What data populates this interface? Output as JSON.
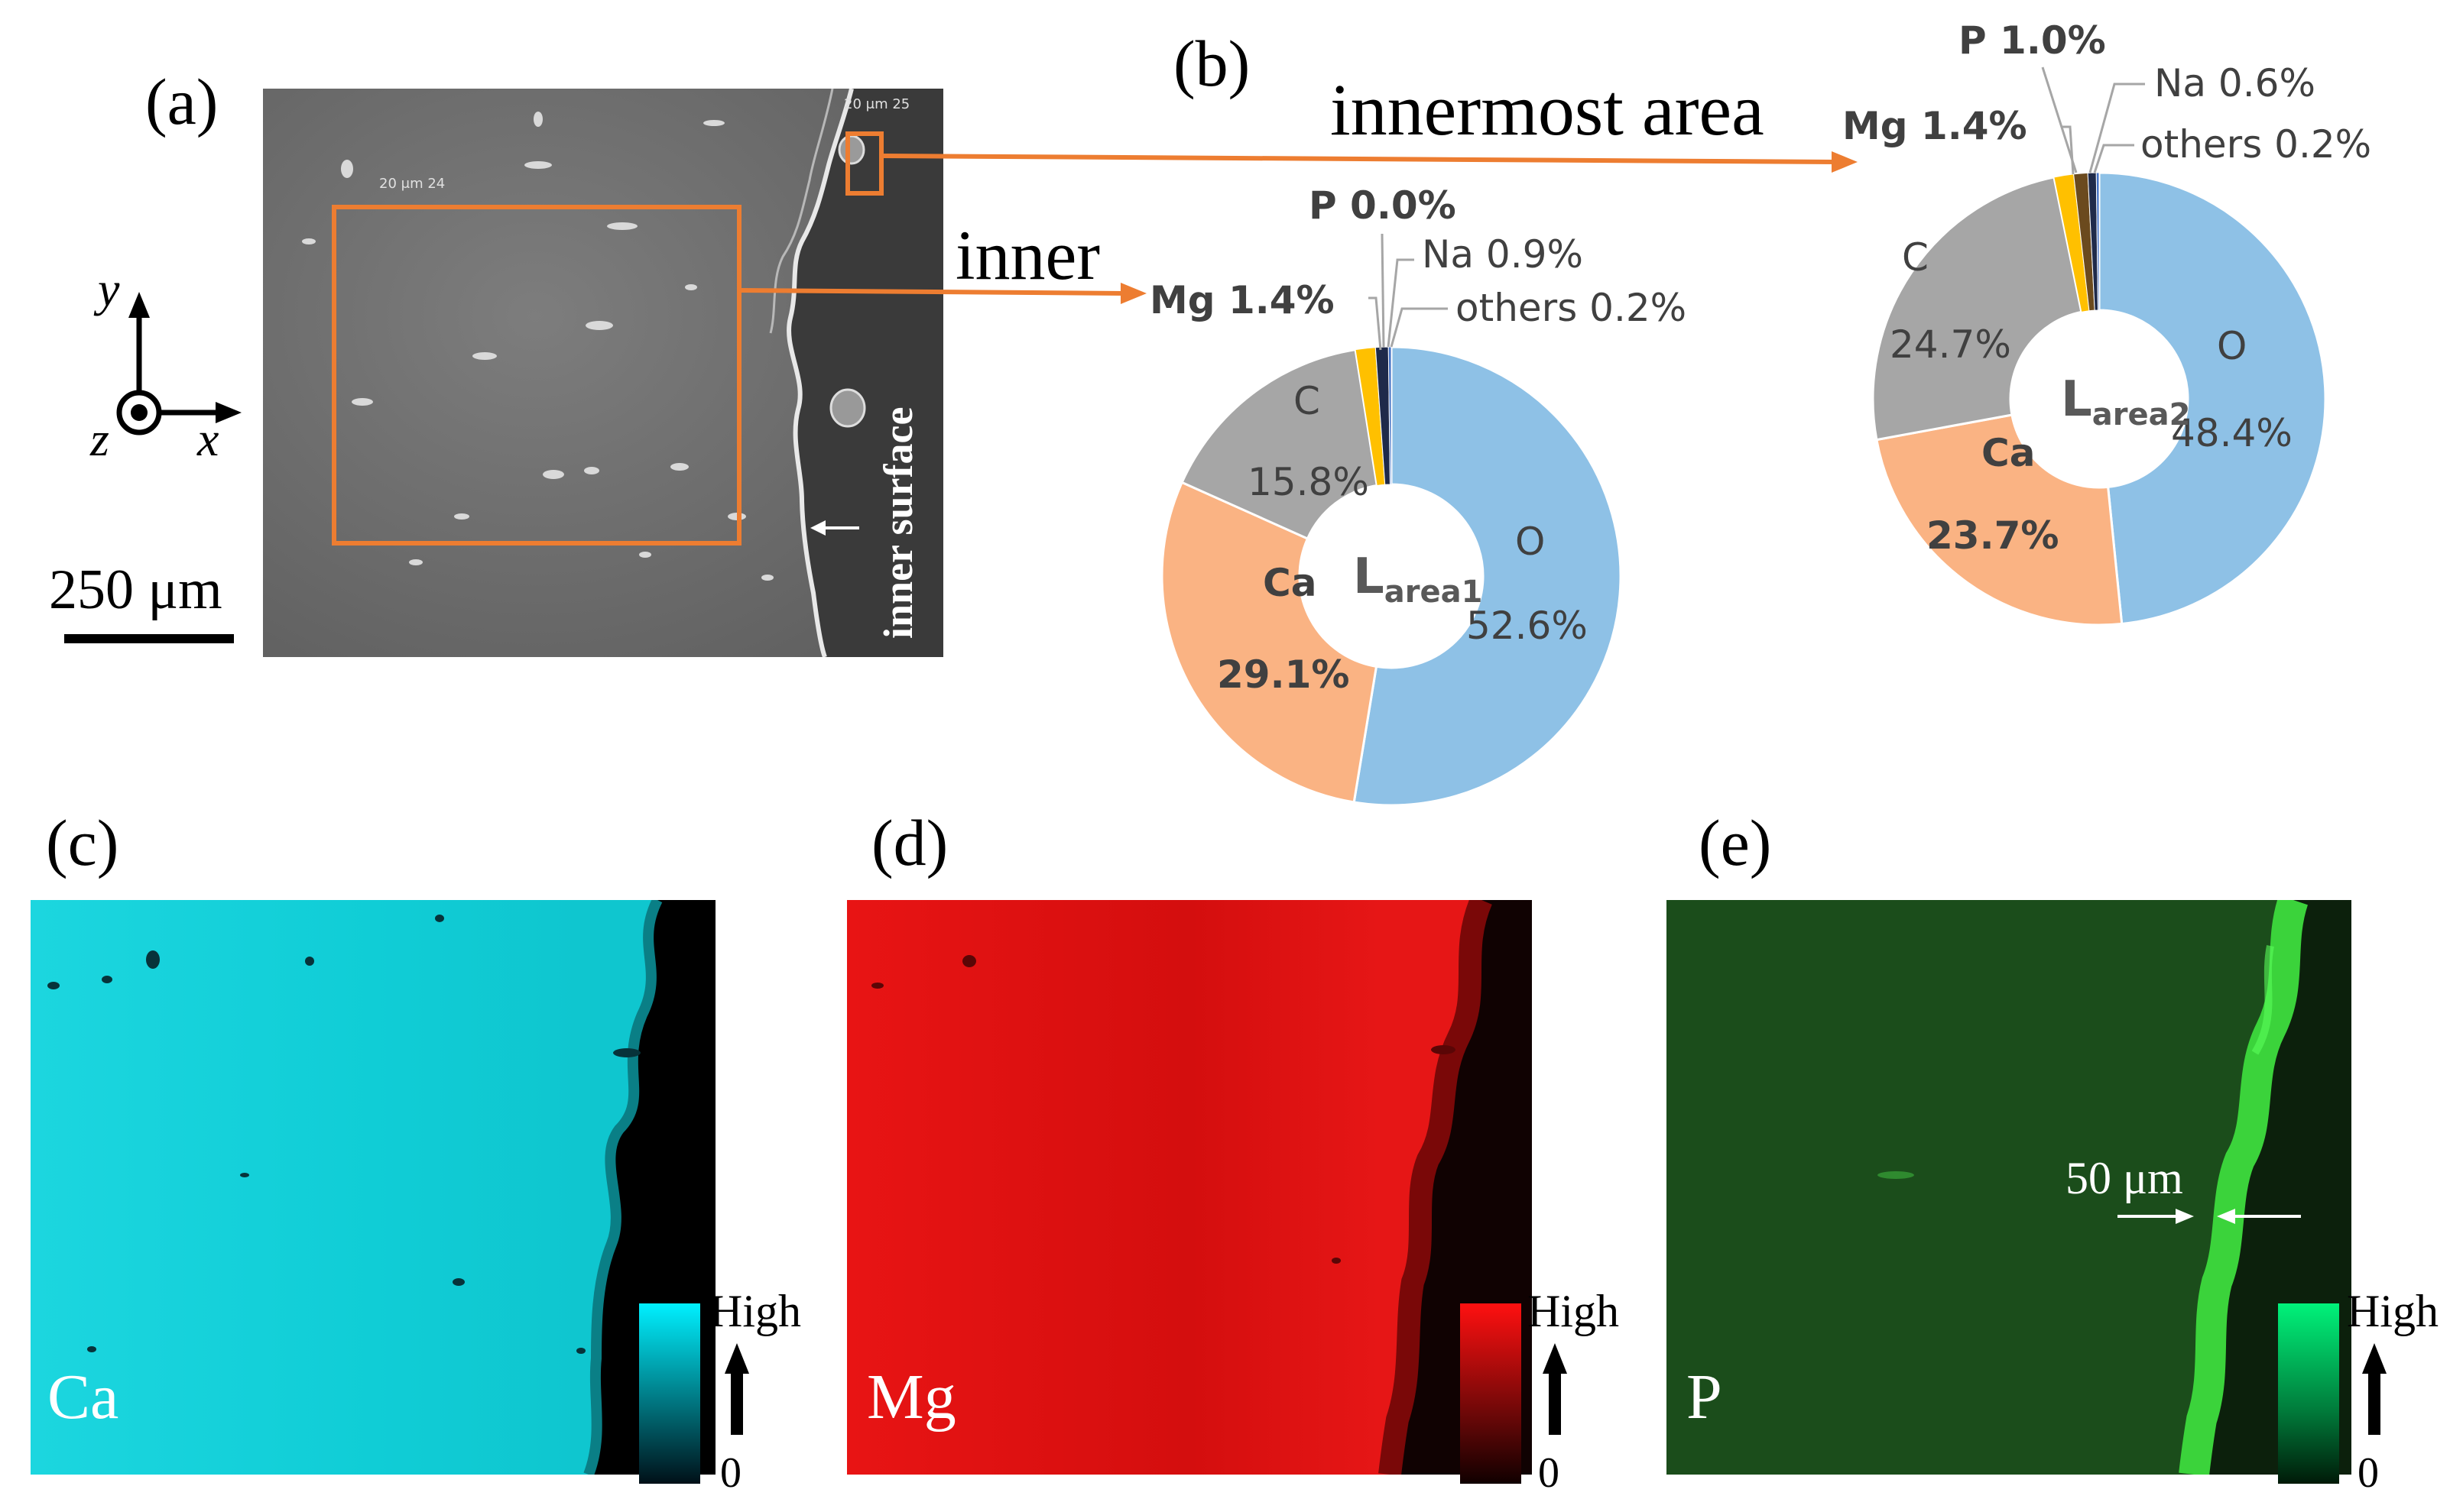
{
  "panels": {
    "a": "(a)",
    "b": "(b)",
    "c": "(c)",
    "d": "(d)",
    "e": "(e)"
  },
  "panel_a": {
    "axis_y": "y",
    "axis_x": "x",
    "axis_z": "z",
    "scale_bar": "250 μm",
    "inner_surface": "inner surface",
    "inner_label": "inner",
    "innermost_label": "innermost area",
    "sem_tag_1": "20 μm 24",
    "sem_tag_2": "20 μm 25"
  },
  "chart_data": [
    {
      "type": "pie",
      "center_label_main": "L",
      "center_label_sub": "area1",
      "slices": [
        {
          "label": "O",
          "value": 52.6,
          "display": "52.6%",
          "color": "#8ec1e6"
        },
        {
          "label": "Ca",
          "value": 29.1,
          "display": "29.1%",
          "color": "#fab383"
        },
        {
          "label": "C",
          "value": 15.8,
          "display": "15.8%",
          "color": "#a6a6a6"
        },
        {
          "label": "Mg",
          "value": 1.4,
          "display": "Mg 1.4%",
          "color": "#ffc000"
        },
        {
          "label": "P",
          "value": 0.0,
          "display": "P 0.0%",
          "color": "#6b4a1e"
        },
        {
          "label": "Na",
          "value": 0.9,
          "display": "Na 0.9%",
          "color": "#1f2a4a"
        },
        {
          "label": "others",
          "value": 0.2,
          "display": "others 0.2%",
          "color": "#4472c4"
        }
      ]
    },
    {
      "type": "pie",
      "center_label_main": "L",
      "center_label_sub": "area2",
      "slices": [
        {
          "label": "O",
          "value": 48.4,
          "display": "48.4%",
          "color": "#8ec1e6"
        },
        {
          "label": "Ca",
          "value": 23.7,
          "display": "23.7%",
          "color": "#fab383"
        },
        {
          "label": "C",
          "value": 24.7,
          "display": "24.7%",
          "color": "#a6a6a6"
        },
        {
          "label": "Mg",
          "value": 1.4,
          "display": "Mg 1.4%",
          "color": "#ffc000"
        },
        {
          "label": "P",
          "value": 1.0,
          "display": "P 1.0%",
          "color": "#6b4a1e"
        },
        {
          "label": "Na",
          "value": 0.6,
          "display": "Na 0.6%",
          "color": "#1f2a4a"
        },
        {
          "label": "others",
          "value": 0.2,
          "display": "others 0.2%",
          "color": "#4472c4"
        }
      ]
    }
  ],
  "maps": [
    {
      "element": "Ca",
      "high": "High",
      "low": "0",
      "color": "#14d8e0",
      "scale_top": "#00f0ff",
      "scale_bottom": "#001018"
    },
    {
      "element": "Mg",
      "high": "High",
      "low": "0",
      "color": "#e81010",
      "scale_top": "#ff1010",
      "scale_bottom": "#100000"
    },
    {
      "element": "P",
      "high": "High",
      "low": "0",
      "color": "#1d5a1d",
      "scale_top": "#00f27a",
      "scale_bottom": "#001a08"
    }
  ],
  "panel_e": {
    "width_label": "50 μm"
  }
}
